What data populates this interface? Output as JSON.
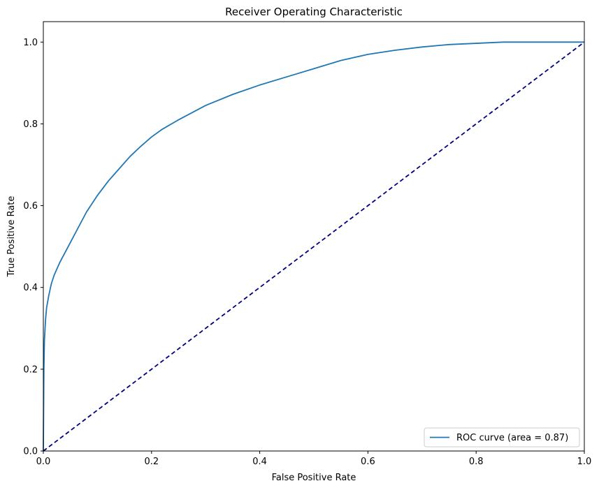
{
  "chart_data": {
    "type": "line",
    "title": "Receiver Operating Characteristic",
    "xlabel": "False Positive Rate",
    "ylabel": "True Positive Rate",
    "xlim": [
      0.0,
      1.0
    ],
    "ylim": [
      0.0,
      1.05
    ],
    "x_ticks": [
      "0.0",
      "0.2",
      "0.4",
      "0.6",
      "0.8",
      "1.0"
    ],
    "y_ticks": [
      "0.0",
      "0.2",
      "0.4",
      "0.6",
      "0.8",
      "1.0"
    ],
    "grid": false,
    "legend_position": "bottom-right",
    "series": [
      {
        "name": "ROC curve (area = 0.87)",
        "color": "#1f77b4",
        "style": "solid",
        "x": [
          0.0,
          0.001,
          0.002,
          0.004,
          0.006,
          0.01,
          0.015,
          0.02,
          0.03,
          0.04,
          0.05,
          0.06,
          0.07,
          0.08,
          0.1,
          0.12,
          0.14,
          0.16,
          0.18,
          0.2,
          0.22,
          0.25,
          0.3,
          0.35,
          0.4,
          0.45,
          0.5,
          0.55,
          0.6,
          0.65,
          0.7,
          0.75,
          0.8,
          0.85,
          0.9,
          0.95,
          1.0
        ],
        "y": [
          0.0,
          0.2,
          0.27,
          0.32,
          0.35,
          0.38,
          0.41,
          0.43,
          0.46,
          0.485,
          0.51,
          0.535,
          0.56,
          0.585,
          0.625,
          0.66,
          0.69,
          0.72,
          0.745,
          0.768,
          0.787,
          0.81,
          0.845,
          0.872,
          0.895,
          0.915,
          0.935,
          0.955,
          0.97,
          0.98,
          0.988,
          0.994,
          0.997,
          1.0,
          1.0,
          1.0,
          1.0
        ]
      },
      {
        "color": "#000080",
        "style": "dashed",
        "x": [
          0.0,
          1.0
        ],
        "y": [
          0.0,
          1.0
        ]
      }
    ]
  }
}
